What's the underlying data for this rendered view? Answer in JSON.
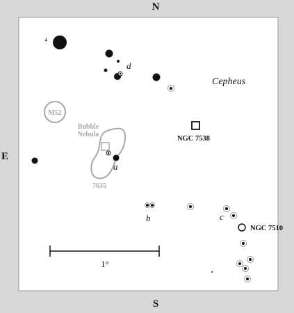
{
  "compass": {
    "north": "N",
    "south": "S",
    "east": "E"
  },
  "constellation": "Cepheus",
  "objects": {
    "ngc7538": "NGC 7538",
    "ngc7510": "NGC 7510",
    "m52": "M52",
    "bubble_line1": "Bubble",
    "bubble_line2": "Nebula",
    "ngc7635": "7635"
  },
  "star_letters": {
    "a": "a",
    "b": "b",
    "c": "c",
    "d": "d"
  },
  "magnitude_label": "4",
  "scale": {
    "label": "1°"
  },
  "colors": {
    "background": "#d8d8d8",
    "chart": "#ffffff",
    "ink": "#111111",
    "nebula": "#a8a8a8"
  }
}
